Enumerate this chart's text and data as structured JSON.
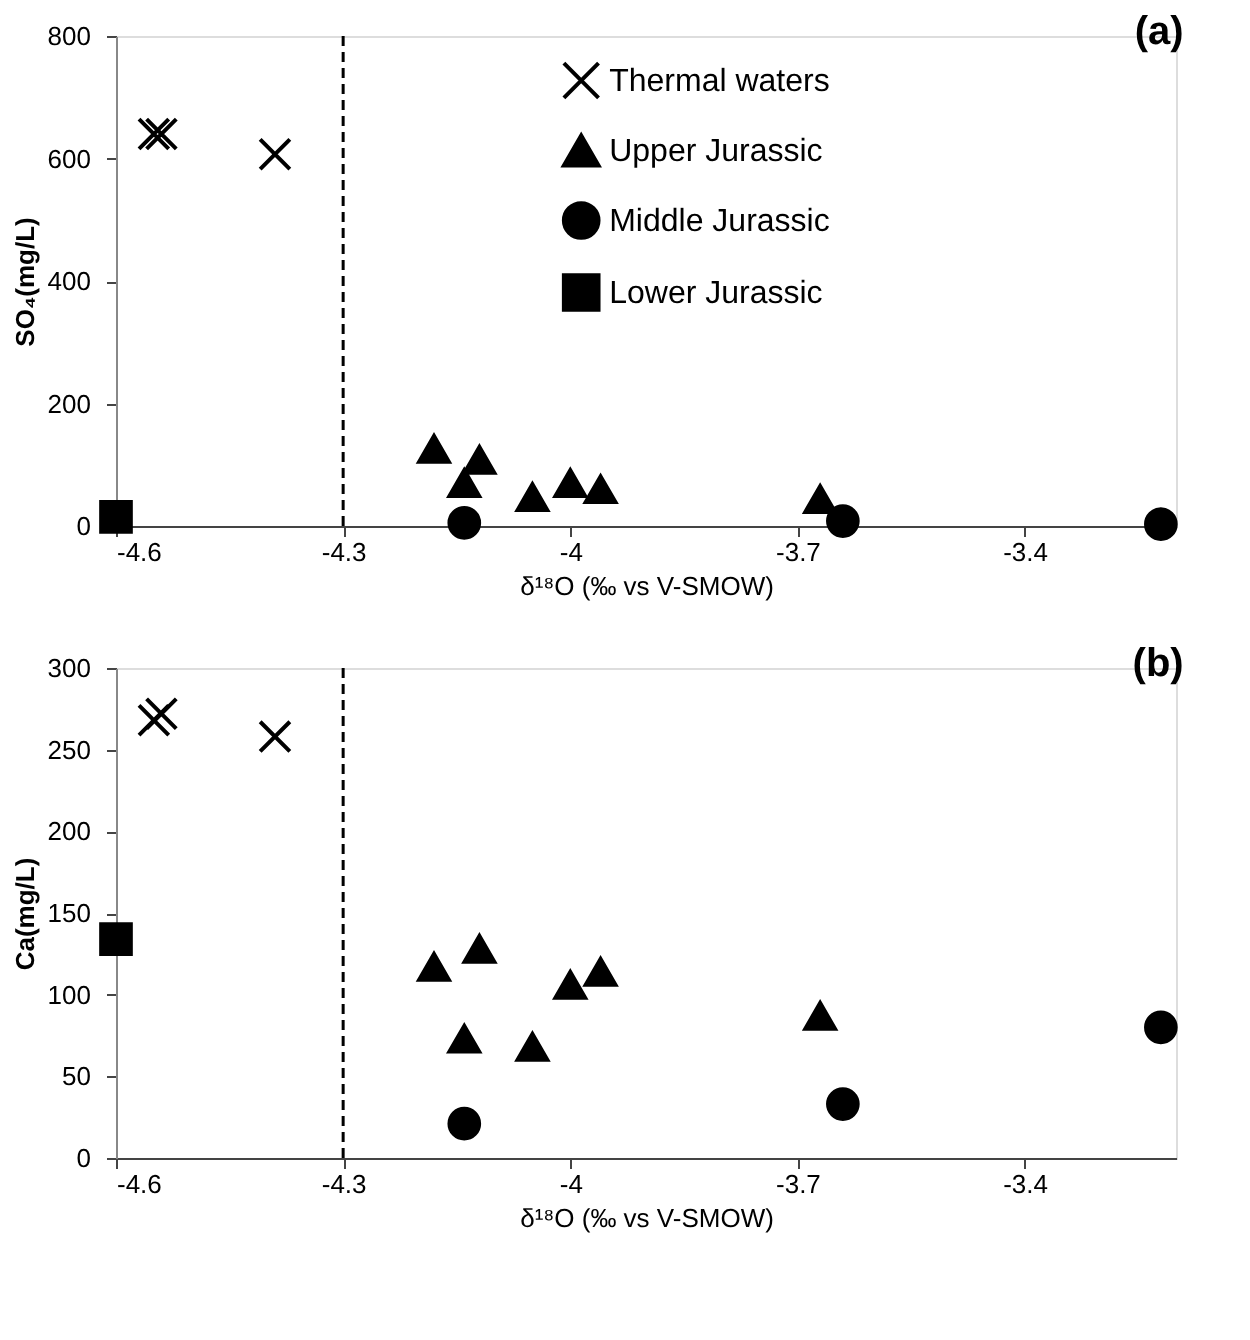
{
  "chart_data": [
    {
      "type": "scatter",
      "title": "(a)",
      "xlabel": "δ¹⁸O (‰ vs V-SMOW)",
      "ylabel": "SO₄(mg/L)",
      "xlim": [
        -4.6,
        -3.2
      ],
      "xticks": [
        -4.6,
        -4.3,
        -4,
        -3.7,
        -3.4
      ],
      "ylim": [
        0,
        800
      ],
      "yticks": [
        0,
        200,
        400,
        600,
        800
      ],
      "grid": false,
      "legend": "top right",
      "ref_lines": [
        {
          "axis": "x",
          "value": -4.3,
          "color": "#000000",
          "line_style": "dashed"
        }
      ],
      "series": [
        {
          "name": "Thermal waters",
          "color": "#000000",
          "marker": "cross",
          "x": [
            -4.55,
            -4.54,
            -4.39
          ],
          "values": [
            640,
            640,
            607
          ]
        },
        {
          "name": "Upper Jurassic",
          "color": "#000000",
          "marker": "triangle",
          "x": [
            -4.18,
            -4.12,
            -4.14,
            -4.05,
            -4.0,
            -3.96,
            -3.67
          ],
          "values": [
            126,
            108,
            70,
            47,
            70,
            60,
            44
          ]
        },
        {
          "name": "Middle Jurassic",
          "color": "#000000",
          "marker": "circle",
          "x": [
            -4.14,
            -3.64,
            -3.22
          ],
          "values": [
            5,
            8,
            3
          ]
        },
        {
          "name": "Lower Jurassic",
          "color": "#000000",
          "marker": "square",
          "x": [
            -4.6
          ],
          "values": [
            15
          ]
        }
      ]
    },
    {
      "type": "scatter",
      "title": "(b)",
      "xlabel": "δ¹⁸O (‰ vs V-SMOW)",
      "ylabel": "Ca(mg/L)",
      "xlim": [
        -4.6,
        -3.2
      ],
      "xticks": [
        -4.6,
        -4.3,
        -4,
        -3.7,
        -3.4
      ],
      "ylim": [
        0,
        300
      ],
      "yticks": [
        0,
        50,
        100,
        150,
        200,
        250,
        300
      ],
      "grid": false,
      "legend": false,
      "ref_lines": [
        {
          "axis": "x",
          "value": -4.3,
          "color": "#000000",
          "line_style": "dashed"
        }
      ],
      "series": [
        {
          "color": "#000000",
          "marker": "cross",
          "x": [
            -4.55,
            -4.54,
            -4.39
          ],
          "values": [
            268,
            272,
            258
          ]
        },
        {
          "color": "#000000",
          "marker": "triangle",
          "x": [
            -4.18,
            -4.12,
            -4.14,
            -4.05,
            -4.0,
            -3.96,
            -3.67
          ],
          "values": [
            117,
            128,
            73,
            68,
            106,
            114,
            87
          ]
        },
        {
          "color": "#000000",
          "marker": "circle",
          "x": [
            -4.14,
            -3.64,
            -3.22
          ],
          "values": [
            21,
            33,
            80
          ]
        },
        {
          "color": "#000000",
          "marker": "square",
          "x": [
            -4.6
          ],
          "values": [
            134
          ]
        }
      ]
    }
  ]
}
